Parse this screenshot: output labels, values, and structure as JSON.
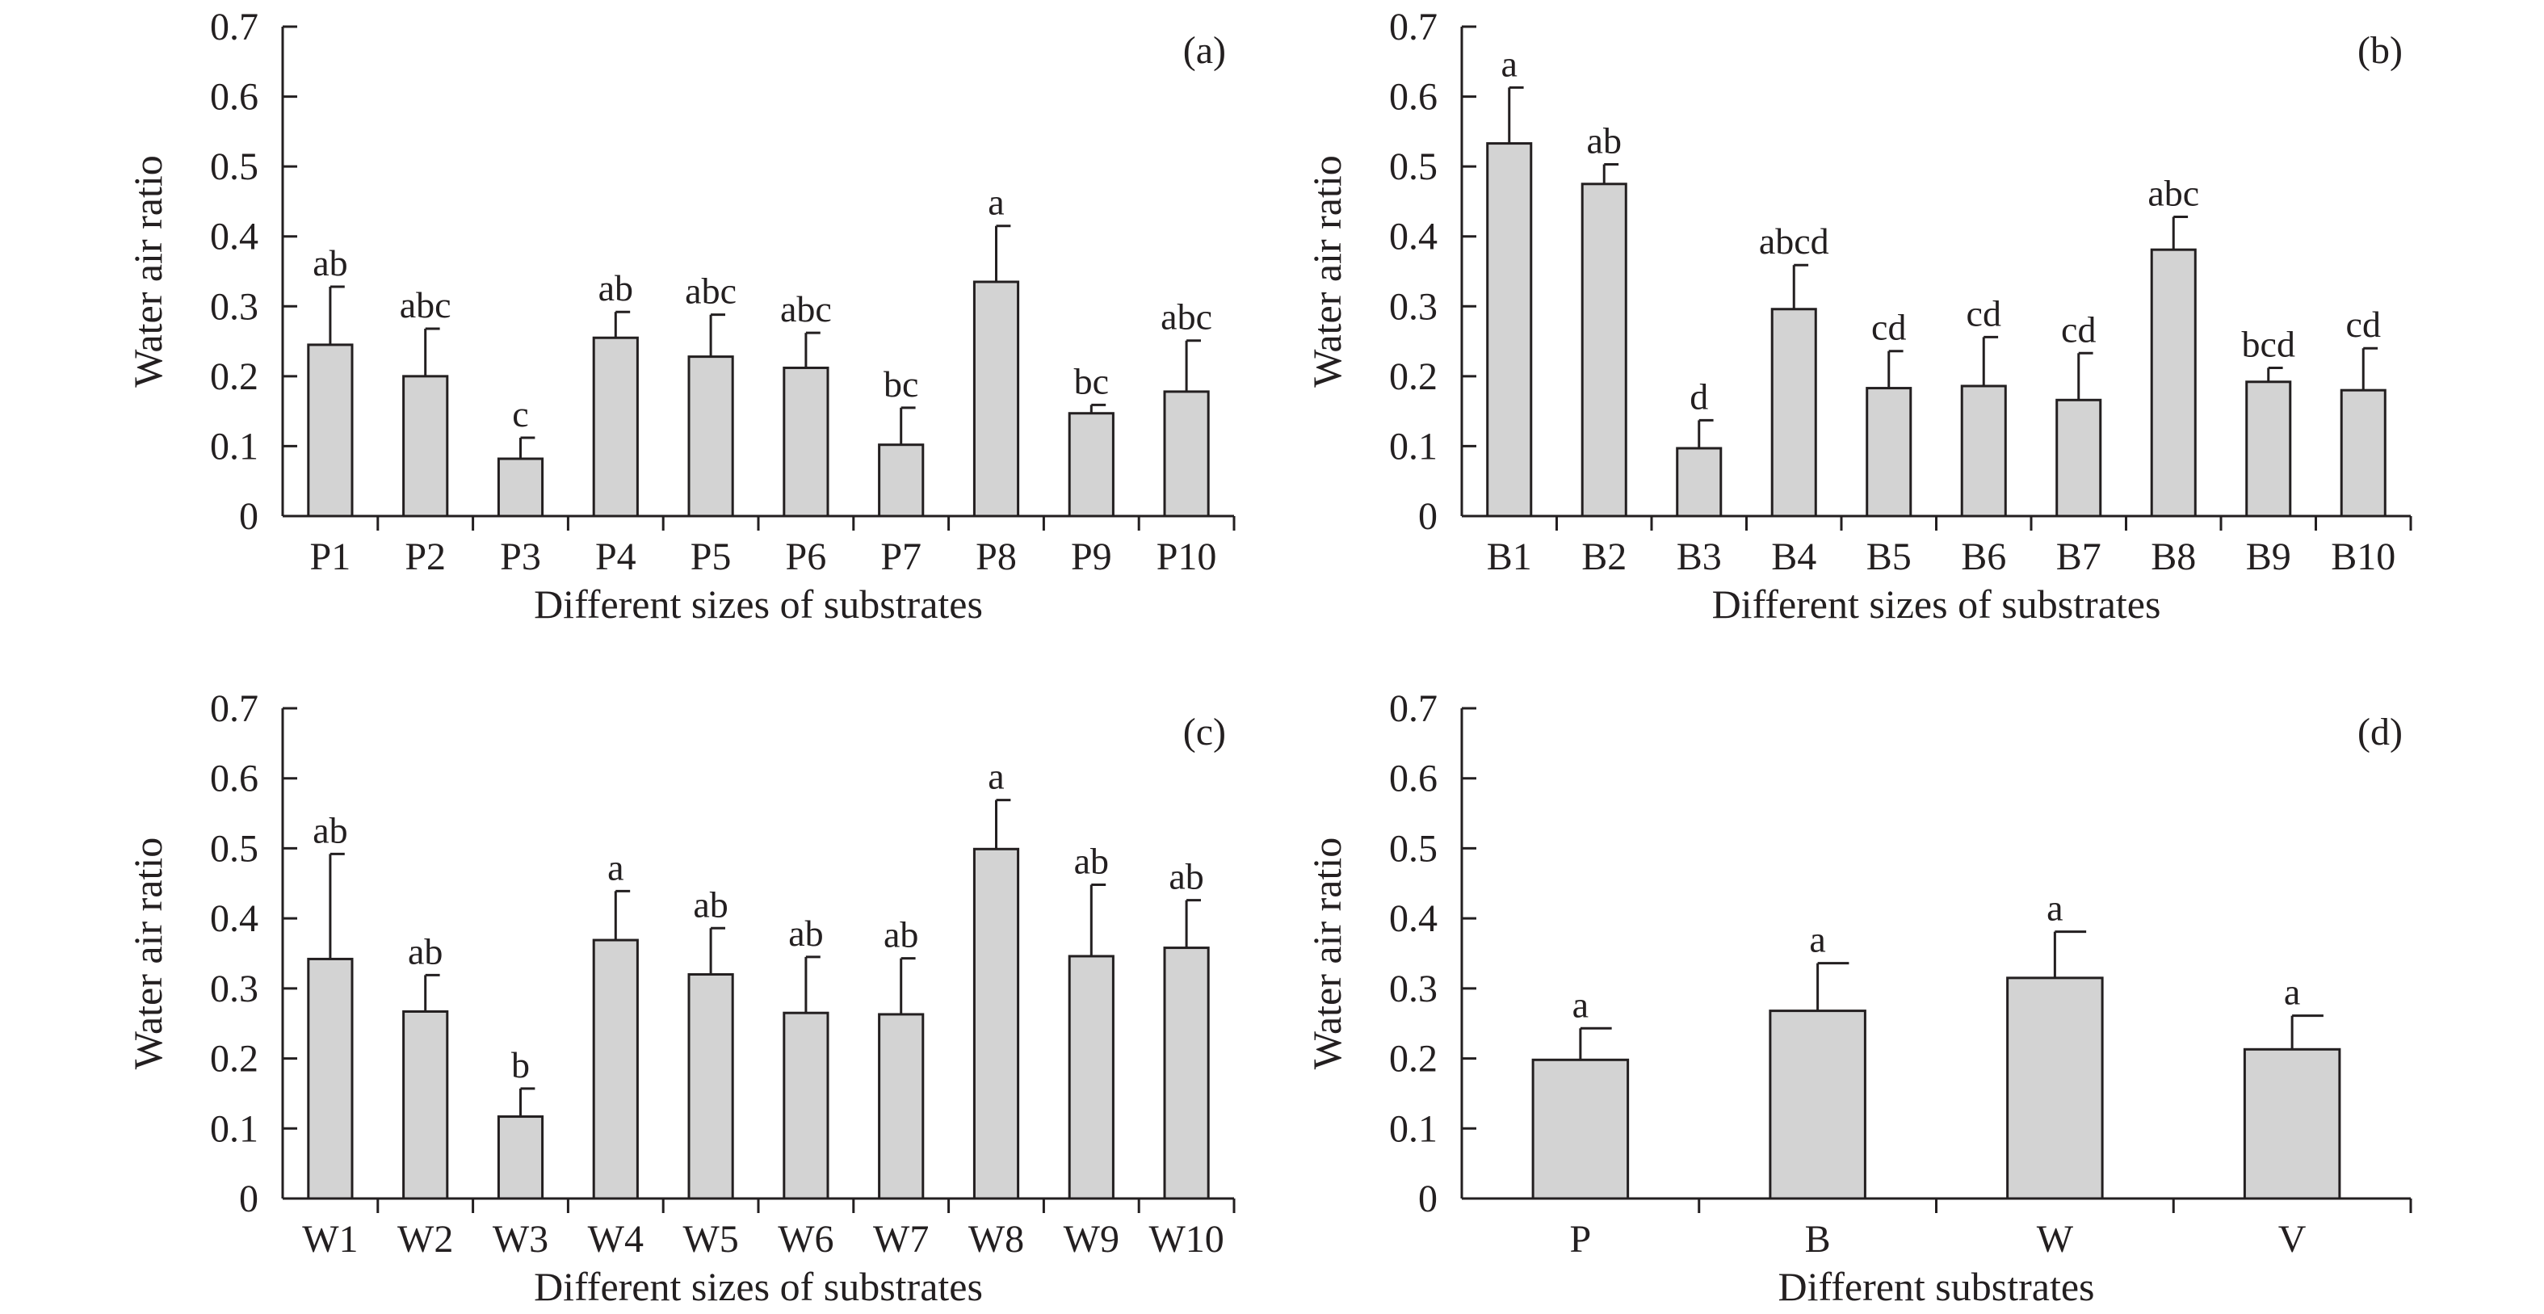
{
  "style": {
    "bar_fill": "#d3d3d3",
    "line_color": "#231f20",
    "background": "#ffffff"
  },
  "chart_data": [
    {
      "type": "bar",
      "panel_label": "(a)",
      "xlabel": "Different sizes of substrates",
      "ylabel": "Water air ratio",
      "ylim": [
        0,
        0.7
      ],
      "yticks": [
        "0",
        "0.1",
        "0.2",
        "0.3",
        "0.4",
        "0.5",
        "0.6",
        "0.7"
      ],
      "categories": [
        "P1",
        "P2",
        "P3",
        "P4",
        "P5",
        "P6",
        "P7",
        "P8",
        "P9",
        "P10"
      ],
      "values": [
        0.245,
        0.2,
        0.082,
        0.255,
        0.228,
        0.212,
        0.102,
        0.335,
        0.147,
        0.178
      ],
      "errors": [
        0.083,
        0.068,
        0.03,
        0.037,
        0.06,
        0.05,
        0.053,
        0.08,
        0.012,
        0.073
      ],
      "significance": [
        "ab",
        "abc",
        "c",
        "ab",
        "abc",
        "abc",
        "bc",
        "a",
        "bc",
        "abc"
      ],
      "grid": false
    },
    {
      "type": "bar",
      "panel_label": "(b)",
      "xlabel": "Different sizes of substrates",
      "ylabel": "Water air ratio",
      "ylim": [
        0,
        0.7
      ],
      "yticks": [
        "0",
        "0.1",
        "0.2",
        "0.3",
        "0.4",
        "0.5",
        "0.6",
        "0.7"
      ],
      "categories": [
        "B1",
        "B2",
        "B3",
        "B4",
        "B5",
        "B6",
        "B7",
        "B8",
        "B9",
        "B10"
      ],
      "values": [
        0.533,
        0.475,
        0.097,
        0.296,
        0.183,
        0.186,
        0.166,
        0.381,
        0.192,
        0.18
      ],
      "errors": [
        0.08,
        0.028,
        0.04,
        0.063,
        0.053,
        0.07,
        0.067,
        0.047,
        0.02,
        0.06
      ],
      "significance": [
        "a",
        "ab",
        "d",
        "abcd",
        "cd",
        "cd",
        "cd",
        "abc",
        "bcd",
        "cd"
      ],
      "grid": false
    },
    {
      "type": "bar",
      "panel_label": "(c)",
      "xlabel": "Different sizes of substrates",
      "ylabel": "Water air ratio",
      "ylim": [
        0,
        0.7
      ],
      "yticks": [
        "0",
        "0.1",
        "0.2",
        "0.3",
        "0.4",
        "0.5",
        "0.6",
        "0.7"
      ],
      "categories": [
        "W1",
        "W2",
        "W3",
        "W4",
        "W5",
        "W6",
        "W7",
        "W8",
        "W9",
        "W10"
      ],
      "values": [
        0.342,
        0.267,
        0.117,
        0.369,
        0.32,
        0.265,
        0.263,
        0.499,
        0.346,
        0.358
      ],
      "errors": [
        0.15,
        0.052,
        0.04,
        0.07,
        0.066,
        0.08,
        0.08,
        0.07,
        0.102,
        0.068
      ],
      "significance": [
        "ab",
        "ab",
        "b",
        "a",
        "ab",
        "ab",
        "ab",
        "a",
        "ab",
        "ab"
      ],
      "grid": false
    },
    {
      "type": "bar",
      "panel_label": "(d)",
      "xlabel": "Different substrates",
      "ylabel": "Water air ratio",
      "ylim": [
        0,
        0.7
      ],
      "yticks": [
        "0",
        "0.1",
        "0.2",
        "0.3",
        "0.4",
        "0.5",
        "0.6",
        "0.7"
      ],
      "categories": [
        "P",
        "B",
        "W",
        "V"
      ],
      "values": [
        0.198,
        0.268,
        0.315,
        0.213
      ],
      "errors": [
        0.045,
        0.068,
        0.066,
        0.048
      ],
      "significance": [
        "a",
        "a",
        "a",
        "a"
      ],
      "grid": false
    }
  ]
}
